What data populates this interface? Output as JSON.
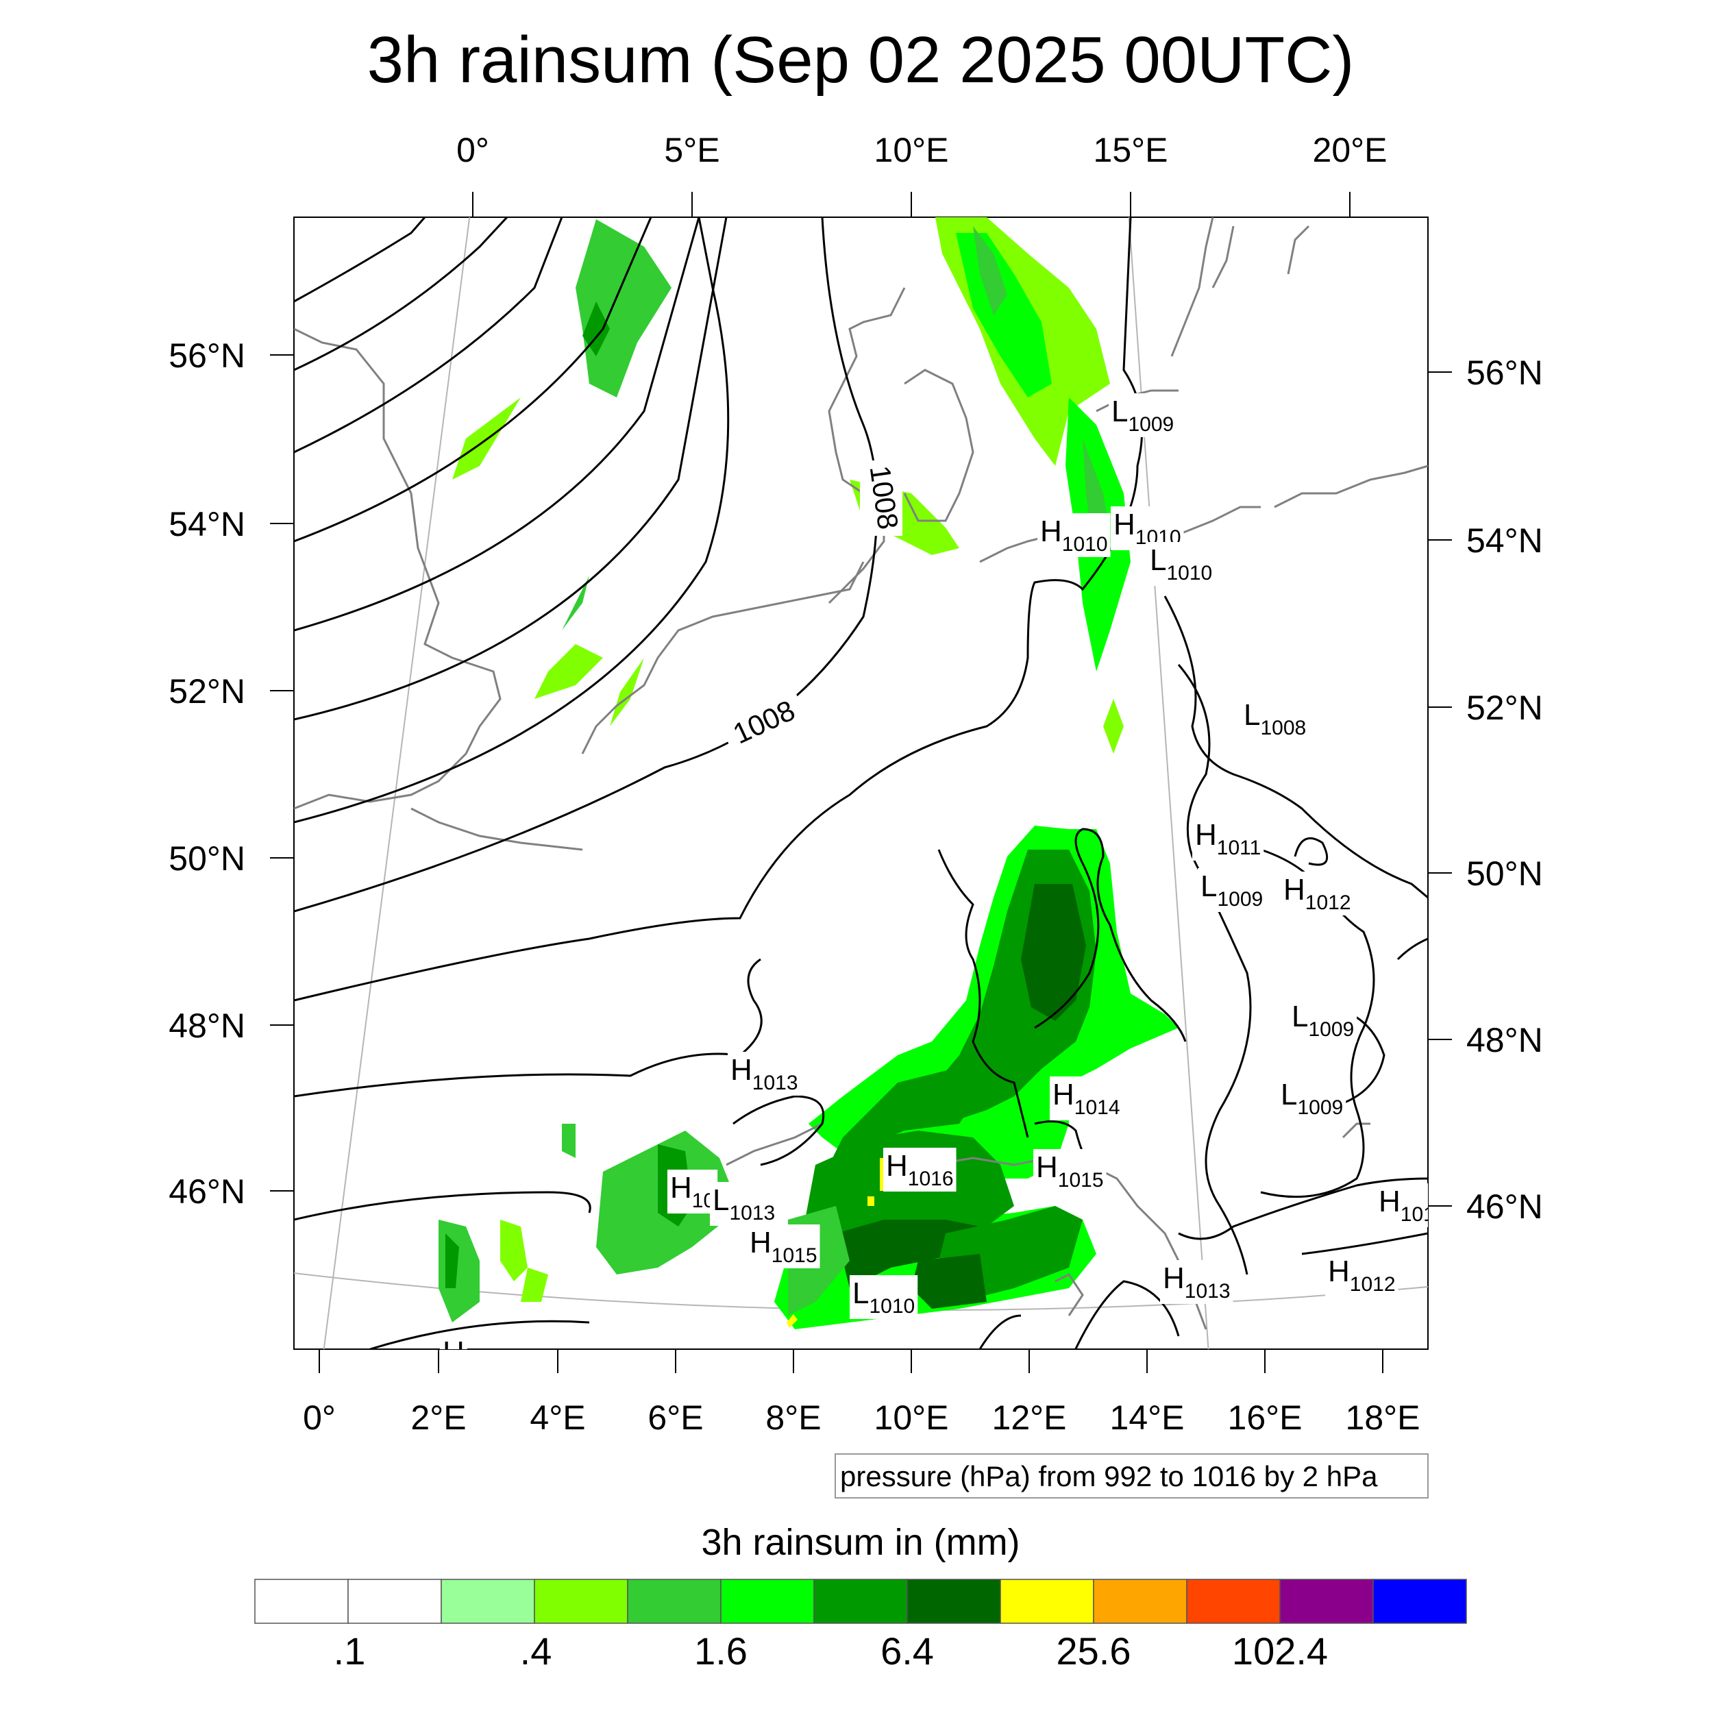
{
  "title": "3h rainsum (Sep 02 2025 00UTC)",
  "top_lon_labels": [
    "0°",
    "5°E",
    "10°E",
    "15°E",
    "20°E"
  ],
  "bottom_lon_labels": [
    "0°",
    "2°E",
    "4°E",
    "6°E",
    "8°E",
    "10°E",
    "12°E",
    "14°E",
    "16°E",
    "18°E"
  ],
  "left_lat_labels": [
    "56°N",
    "54°N",
    "52°N",
    "50°N",
    "48°N",
    "46°N"
  ],
  "right_lat_labels": [
    "56°N",
    "54°N",
    "52°N",
    "50°N",
    "48°N",
    "46°N"
  ],
  "contour_labels": [
    "1008",
    "1008"
  ],
  "pressure_centers": [
    {
      "t": "L",
      "v": "1009"
    },
    {
      "t": "H",
      "v": "1010"
    },
    {
      "t": "H",
      "v": "1010"
    },
    {
      "t": "L",
      "v": "1010"
    },
    {
      "t": "L",
      "v": "1008"
    },
    {
      "t": "H",
      "v": "1011"
    },
    {
      "t": "L",
      "v": "1009"
    },
    {
      "t": "H",
      "v": "1012"
    },
    {
      "t": "L",
      "v": "1009"
    },
    {
      "t": "H",
      "v": "1013"
    },
    {
      "t": "L",
      "v": "1009"
    },
    {
      "t": "H",
      "v": "1014"
    },
    {
      "t": "H",
      "v": "1016"
    },
    {
      "t": "H",
      "v": "1015"
    },
    {
      "t": "H",
      "v": "10"
    },
    {
      "t": "L",
      "v": "1013"
    },
    {
      "t": "H",
      "v": "1015"
    },
    {
      "t": "L",
      "v": "1010"
    },
    {
      "t": "H",
      "v": "1013"
    },
    {
      "t": "H",
      "v": "1012"
    },
    {
      "t": "H",
      "v": "101"
    },
    {
      "t": "H",
      "v": ""
    }
  ],
  "pressure_note": "pressure (hPa) from 992 to 1016 by 2 hPa",
  "colorbar": {
    "title": "3h rainsum in (mm)",
    "colors": [
      "#ffffff",
      "#ffffff",
      "#99ff99",
      "#80ff00",
      "#33cc33",
      "#00ff00",
      "#009900",
      "#006600",
      "#ffff00",
      "#ffa500",
      "#ff4500",
      "#8b008b",
      "#0000ff"
    ],
    "labels": [
      ".1",
      ".4",
      "1.6",
      "6.4",
      "25.6",
      "102.4"
    ]
  }
}
